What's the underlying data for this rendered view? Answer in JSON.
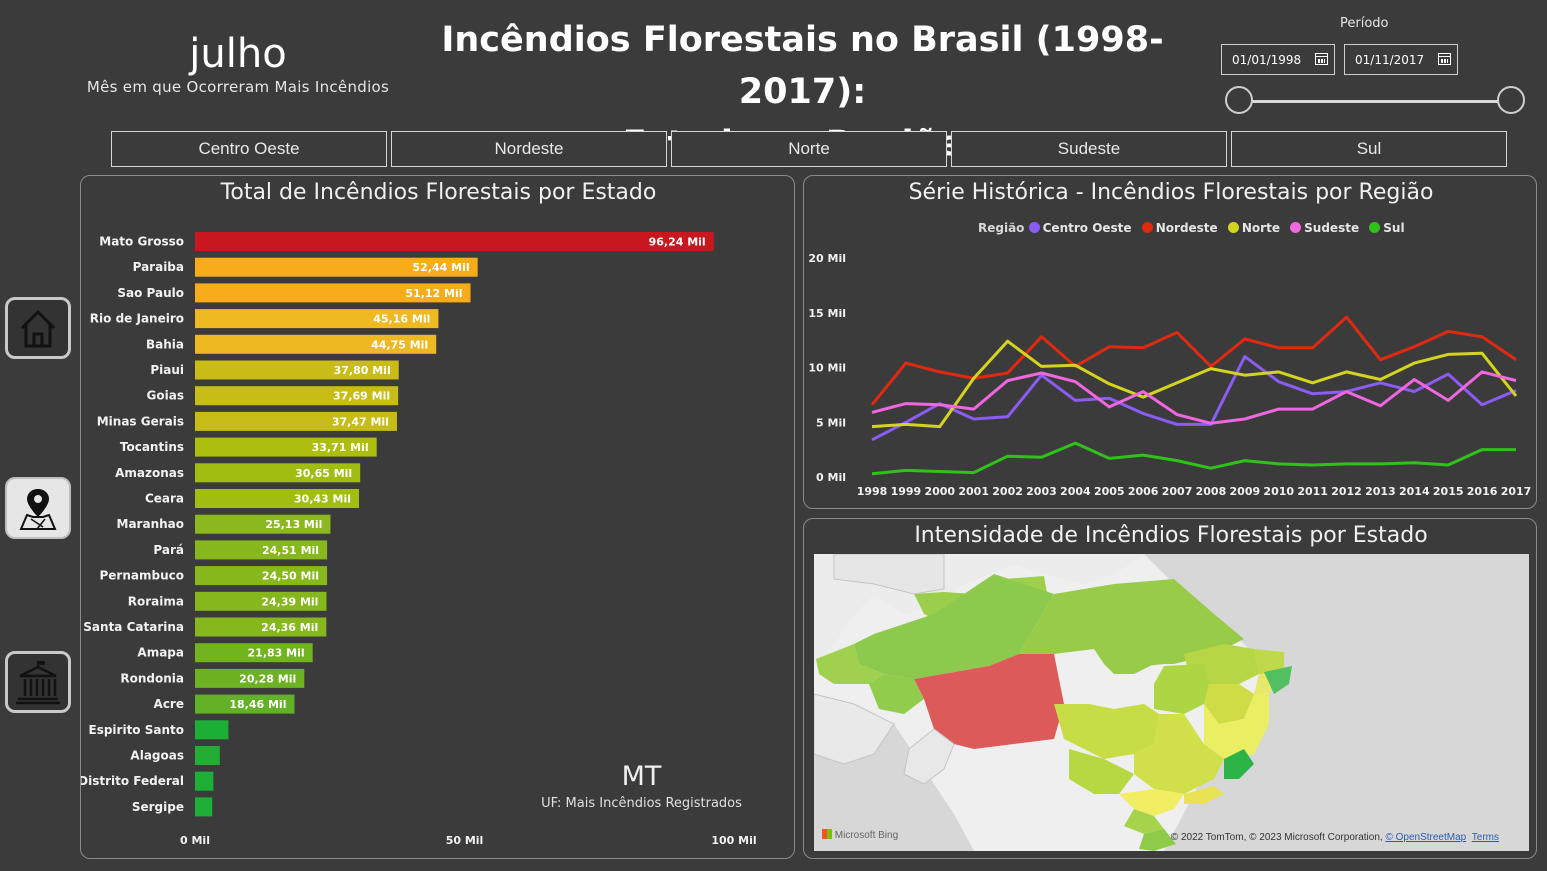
{
  "month_card": {
    "value": "julho",
    "label": "Mês em que Ocorreram Mais Incêndios"
  },
  "title": {
    "line1": "Incêndios Florestais no Brasil (1998-2017):",
    "line2": "Estados e Regiões"
  },
  "period": {
    "label": "Período",
    "start": "01/01/1998",
    "end": "01/11/2017"
  },
  "regions": [
    "Centro Oeste",
    "Nordeste",
    "Norte",
    "Sudeste",
    "Sul"
  ],
  "nav": {
    "home_icon": "home-icon",
    "map_icon": "map-pin-icon",
    "building_icon": "government-building-icon"
  },
  "bar_panel": {
    "title": "Total de Incêndios Florestais por Estado"
  },
  "uf_card": {
    "value": "MT",
    "label": "UF: Mais Incêndios Registrados"
  },
  "line_panel": {
    "title": "Série Histórica - Incêndios Florestais por Região",
    "legend_title": "Região"
  },
  "map_panel": {
    "title": "Intensidade de Incêndios Florestais por Estado",
    "brand": "Microsoft Bing",
    "credit": "© 2022 TomTom, © 2023 Microsoft Corporation,",
    "osm": "© OpenStreetMap",
    "terms": "Terms"
  },
  "chart_data": [
    {
      "type": "bar",
      "orientation": "horizontal",
      "title": "Total de Incêndios Florestais por Estado",
      "unit": "Mil",
      "categories": [
        "Mato Grosso",
        "Paraiba",
        "Sao Paulo",
        "Rio de Janeiro",
        "Bahia",
        "Piaui",
        "Goias",
        "Minas Gerais",
        "Tocantins",
        "Amazonas",
        "Ceara",
        "Maranhao",
        "Pará",
        "Pernambuco",
        "Roraima",
        "Santa Catarina",
        "Amapa",
        "Rondonia",
        "Acre",
        "Espirito Santo",
        "Alagoas",
        "Distrito Federal",
        "Sergipe"
      ],
      "values": [
        96.24,
        52.44,
        51.12,
        45.16,
        44.75,
        37.8,
        37.69,
        37.47,
        33.71,
        30.65,
        30.43,
        25.13,
        24.51,
        24.5,
        24.39,
        24.36,
        21.83,
        20.28,
        18.46,
        6.2,
        4.6,
        3.4,
        3.2
      ],
      "value_labels": [
        "96,24 Mil",
        "52,44 Mil",
        "51,12 Mil",
        "45,16 Mil",
        "44,75 Mil",
        "37,80 Mil",
        "37,69 Mil",
        "37,47 Mil",
        "33,71 Mil",
        "30,65 Mil",
        "30,43 Mil",
        "25,13 Mil",
        "24,51 Mil",
        "24,50 Mil",
        "24,39 Mil",
        "24,36 Mil",
        "21,83 Mil",
        "20,28 Mil",
        "18,46 Mil",
        "",
        "",
        "",
        ""
      ],
      "colors": [
        "#c8171e",
        "#f8ac1a",
        "#f7ad1b",
        "#efb922",
        "#eeb822",
        "#c9bc16",
        "#c7bd16",
        "#c8bc16",
        "#aebe10",
        "#a1bd12",
        "#a1bd12",
        "#8bb81e",
        "#86b71d",
        "#87b81c",
        "#86b71d",
        "#86b71d",
        "#72b320",
        "#6cb223",
        "#62b127",
        "#1caf36",
        "#22ad33",
        "#1eb036",
        "#1eb036"
      ],
      "xaxis_ticks": [
        "0 Mil",
        "50 Mil",
        "100 Mil"
      ],
      "xlim": [
        0,
        100
      ]
    },
    {
      "type": "line",
      "title": "Série Histórica - Incêndios Florestais por Região",
      "legend_title": "Região",
      "x": [
        "1998",
        "1999",
        "2000",
        "2001",
        "2002",
        "2003",
        "2004",
        "2005",
        "2006",
        "2007",
        "2008",
        "2009",
        "2010",
        "2011",
        "2012",
        "2013",
        "2014",
        "2015",
        "2016",
        "2017"
      ],
      "yaxis_ticks": [
        "0 Mil",
        "5 Mil",
        "10 Mil",
        "15 Mil",
        "20 Mil"
      ],
      "ylim": [
        0,
        20
      ],
      "series": [
        {
          "name": "Centro Oeste",
          "color": "#8b5cf6",
          "values": [
            3.4,
            5.0,
            6.7,
            5.3,
            5.5,
            9.3,
            7.0,
            7.2,
            5.8,
            4.8,
            4.8,
            11.0,
            8.7,
            7.6,
            7.8,
            8.6,
            7.8,
            9.4,
            6.6,
            7.9
          ]
        },
        {
          "name": "Nordeste",
          "color": "#e02a0f",
          "values": [
            6.6,
            10.4,
            9.6,
            9.0,
            9.5,
            12.8,
            10.1,
            11.9,
            11.8,
            13.2,
            10.1,
            12.6,
            11.8,
            11.8,
            14.6,
            10.7,
            11.9,
            13.3,
            12.8,
            10.7
          ]
        },
        {
          "name": "Norte",
          "color": "#d4d420",
          "values": [
            4.6,
            4.8,
            4.6,
            9.0,
            12.4,
            10.1,
            10.2,
            8.5,
            7.3,
            8.6,
            9.9,
            9.3,
            9.6,
            8.6,
            9.6,
            8.9,
            10.4,
            11.2,
            11.3,
            7.4
          ]
        },
        {
          "name": "Sudeste",
          "color": "#f067e0",
          "values": [
            5.9,
            6.7,
            6.6,
            6.2,
            8.8,
            9.5,
            8.7,
            6.4,
            7.8,
            5.7,
            4.9,
            5.3,
            6.2,
            6.2,
            7.8,
            6.5,
            8.9,
            7.0,
            9.6,
            8.8
          ]
        },
        {
          "name": "Sul",
          "color": "#2fc219",
          "values": [
            0.3,
            0.6,
            0.5,
            0.4,
            1.9,
            1.8,
            3.1,
            1.7,
            2.0,
            1.5,
            0.8,
            1.5,
            1.2,
            1.1,
            1.2,
            1.2,
            1.3,
            1.1,
            2.5,
            2.5
          ]
        }
      ]
    }
  ]
}
